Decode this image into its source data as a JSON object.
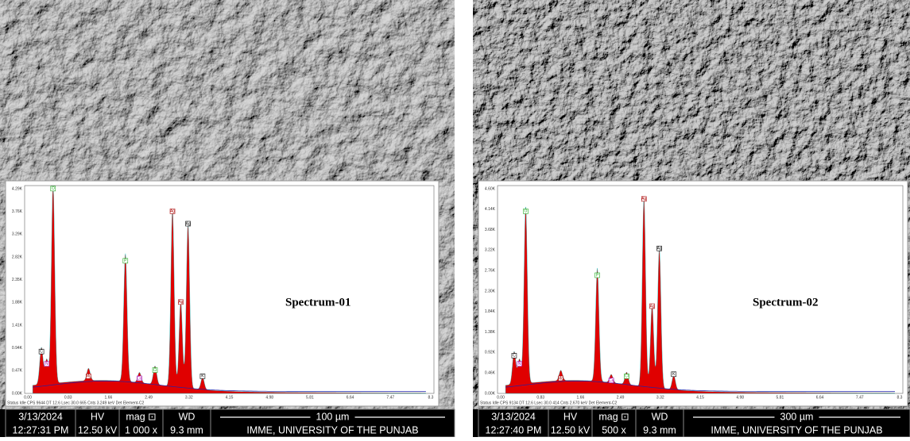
{
  "panels": [
    {
      "spectrum_label": "Spectrum-01",
      "y_ticks": [
        "4.29K",
        "3.76K",
        "3.29K",
        "2.82K",
        "2.35K",
        "1.88K",
        "1.41K",
        "0.94K",
        "0.47K",
        "0.00K"
      ],
      "x_ticks": [
        "0.00",
        "0.83",
        "1.66",
        "2.49",
        "3.32",
        "4.15",
        "4.98",
        "5.81",
        "6.64",
        "7.47",
        "8.3"
      ],
      "peaks": [
        "O",
        "C",
        "N",
        "Mg",
        "P",
        "Cl",
        "K",
        "Ag",
        "Ag",
        "Ag",
        "Ca"
      ],
      "status": "Status Idle   CPS 9644   DT 12.6   Lsec 30.0   665 Cnts   3.249 keV   Det Element-C2",
      "info": {
        "date": "3/13/2024",
        "time": "12:27:31 PM",
        "hv_label": "HV",
        "hv": "12.50 kV",
        "mag_label": "mag ⊡",
        "mag": "1 000 x",
        "wd_label": "WD",
        "wd": "9.3 mm",
        "scale": "100 µm",
        "institution": "IMME, UNIVERSITY OF THE PUNJAB"
      }
    },
    {
      "spectrum_label": "Spectrum-02",
      "y_ticks": [
        "4.60K",
        "4.14K",
        "3.68K",
        "3.22K",
        "2.76K",
        "2.30K",
        "1.84K",
        "1.38K",
        "0.92K",
        "0.46K",
        "0.00K"
      ],
      "x_ticks": [
        "0.00",
        "0.83",
        "1.66",
        "2.49",
        "3.32",
        "4.15",
        "4.98",
        "5.81",
        "6.64",
        "7.47",
        "8.3"
      ],
      "peaks": [
        "O",
        "C",
        "N",
        "Mg",
        "P",
        "Cl",
        "K",
        "Ag",
        "Ag",
        "Ag",
        "Ca"
      ],
      "status": "Status Idle   CPS 9134   DT 12.6   Lsec 30.0   414 Cnts   2.670 keV   Det Element-C2",
      "info": {
        "date": "3/13/2024",
        "time": "12:27:40 PM",
        "hv_label": "HV",
        "hv": "12.50 kV",
        "mag_label": "mag ⊡",
        "mag": "500 x",
        "wd_label": "WD",
        "wd": "9.3 mm",
        "scale": "300 µm",
        "institution": "IMME, UNIVERSITY OF THE PUNJAB"
      }
    }
  ]
}
